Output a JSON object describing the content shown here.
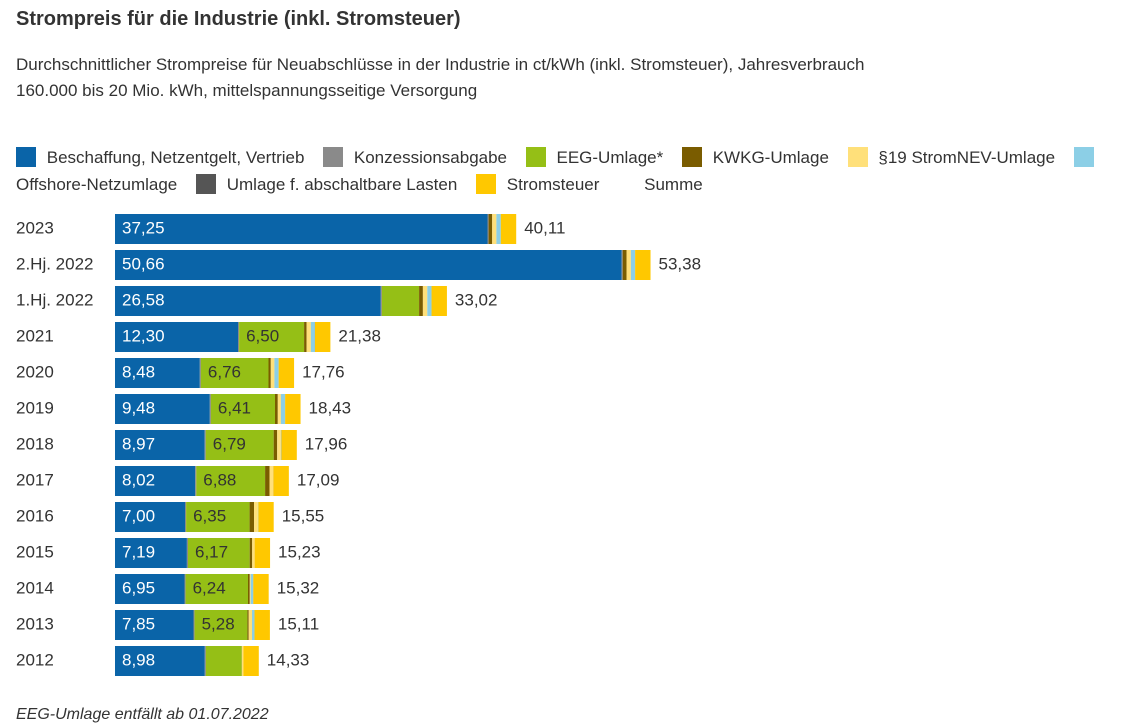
{
  "chart_data": {
    "type": "stacked_bar_horizontal",
    "title": "Strompreis für die Industrie (inkl. Stromsteuer)",
    "subtitle": "Durchschnittlicher Strompreise für Neuabschlüsse in der Industrie in ct/kWh (inkl. Stromsteuer), Jahresverbrauch 160.000 bis 20 Mio. kWh, mittelspannungsseitige Versorgung",
    "categories": [
      "2023",
      "2.Hj. 2022",
      "1.Hj. 2022",
      "2021",
      "2020",
      "2019",
      "2018",
      "2017",
      "2016",
      "2015",
      "2014",
      "2013",
      "2012"
    ],
    "series": [
      {
        "name": "Beschaffung, Netzentgelt, Vertrieb",
        "color": "#0a64a8",
        "label_color": "#ffffff",
        "values": [
          37.25,
          50.66,
          26.58,
          12.3,
          8.48,
          9.48,
          8.97,
          8.02,
          7.0,
          7.19,
          6.95,
          7.85,
          8.98
        ],
        "value_labels": [
          "37,25",
          "50,66",
          "26,58",
          "12,30",
          "8,48",
          "9,48",
          "8,97",
          "8,02",
          "7,00",
          "7,19",
          "6,95",
          "7,85",
          "8,98"
        ]
      },
      {
        "name": "Konzessionsabgabe",
        "color": "#8a8a8a",
        "values": [
          0.11,
          0.11,
          0.11,
          0.11,
          0.11,
          0.11,
          0.11,
          0.11,
          0.11,
          0.11,
          0.11,
          0.11,
          0.11
        ]
      },
      {
        "name": "EEG-Umlage*",
        "color": "#95bf16",
        "label_color": "#333333",
        "values": [
          null,
          null,
          3.72,
          6.5,
          6.76,
          6.41,
          6.79,
          6.88,
          6.35,
          6.17,
          6.24,
          5.28,
          3.59
        ],
        "value_labels": [
          null,
          null,
          null,
          "6,50",
          "6,76",
          "6,41",
          "6,79",
          "6,88",
          "6,35",
          "6,17",
          "6,24",
          "5,28",
          null
        ]
      },
      {
        "name": "KWKG-Umlage",
        "color": "#7a5c00",
        "values": [
          0.36,
          0.38,
          0.38,
          0.25,
          0.23,
          0.28,
          0.35,
          0.44,
          0.45,
          0.25,
          0.18,
          0.13,
          0.01
        ]
      },
      {
        "name": "§19 StromNEV-Umlage",
        "color": "#ffe07a",
        "values": [
          0.42,
          0.44,
          0.44,
          0.43,
          0.36,
          0.31,
          0.37,
          0.39,
          0.38,
          0.24,
          0.09,
          0.33,
          0.15
        ]
      },
      {
        "name": "Offshore-Netzumlage",
        "color": "#8ccfe6",
        "values": [
          0.44,
          0.42,
          0.42,
          0.4,
          0.42,
          0.42,
          0.04,
          null,
          0.04,
          null,
          0.25,
          0.25,
          null
        ]
      },
      {
        "name": "Umlage f. abschaltbare Lasten",
        "color": "#555555",
        "values": [
          null,
          0.003,
          0.003,
          0.009,
          0.007,
          0.005,
          0.011,
          0.006,
          null,
          0.006,
          0.009,
          null,
          null
        ]
      },
      {
        "name": "Stromsteuer",
        "color": "#ffc800",
        "values": [
          1.54,
          1.54,
          1.54,
          1.54,
          1.54,
          1.54,
          1.54,
          1.54,
          1.54,
          1.54,
          1.54,
          1.54,
          1.54
        ]
      }
    ],
    "totals": {
      "name": "Summe",
      "values": [
        40.11,
        53.38,
        33.02,
        21.38,
        17.76,
        18.43,
        17.96,
        17.09,
        15.55,
        15.23,
        15.32,
        15.11,
        14.33
      ],
      "value_labels": [
        "40,11",
        "53,38",
        "33,02",
        "21,38",
        "17,76",
        "18,43",
        "17,96",
        "17,09",
        "15,55",
        "15,23",
        "15,32",
        "15,11",
        "14,33"
      ]
    },
    "footnote": "EEG-Umlage entfällt ab 01.07.2022"
  }
}
